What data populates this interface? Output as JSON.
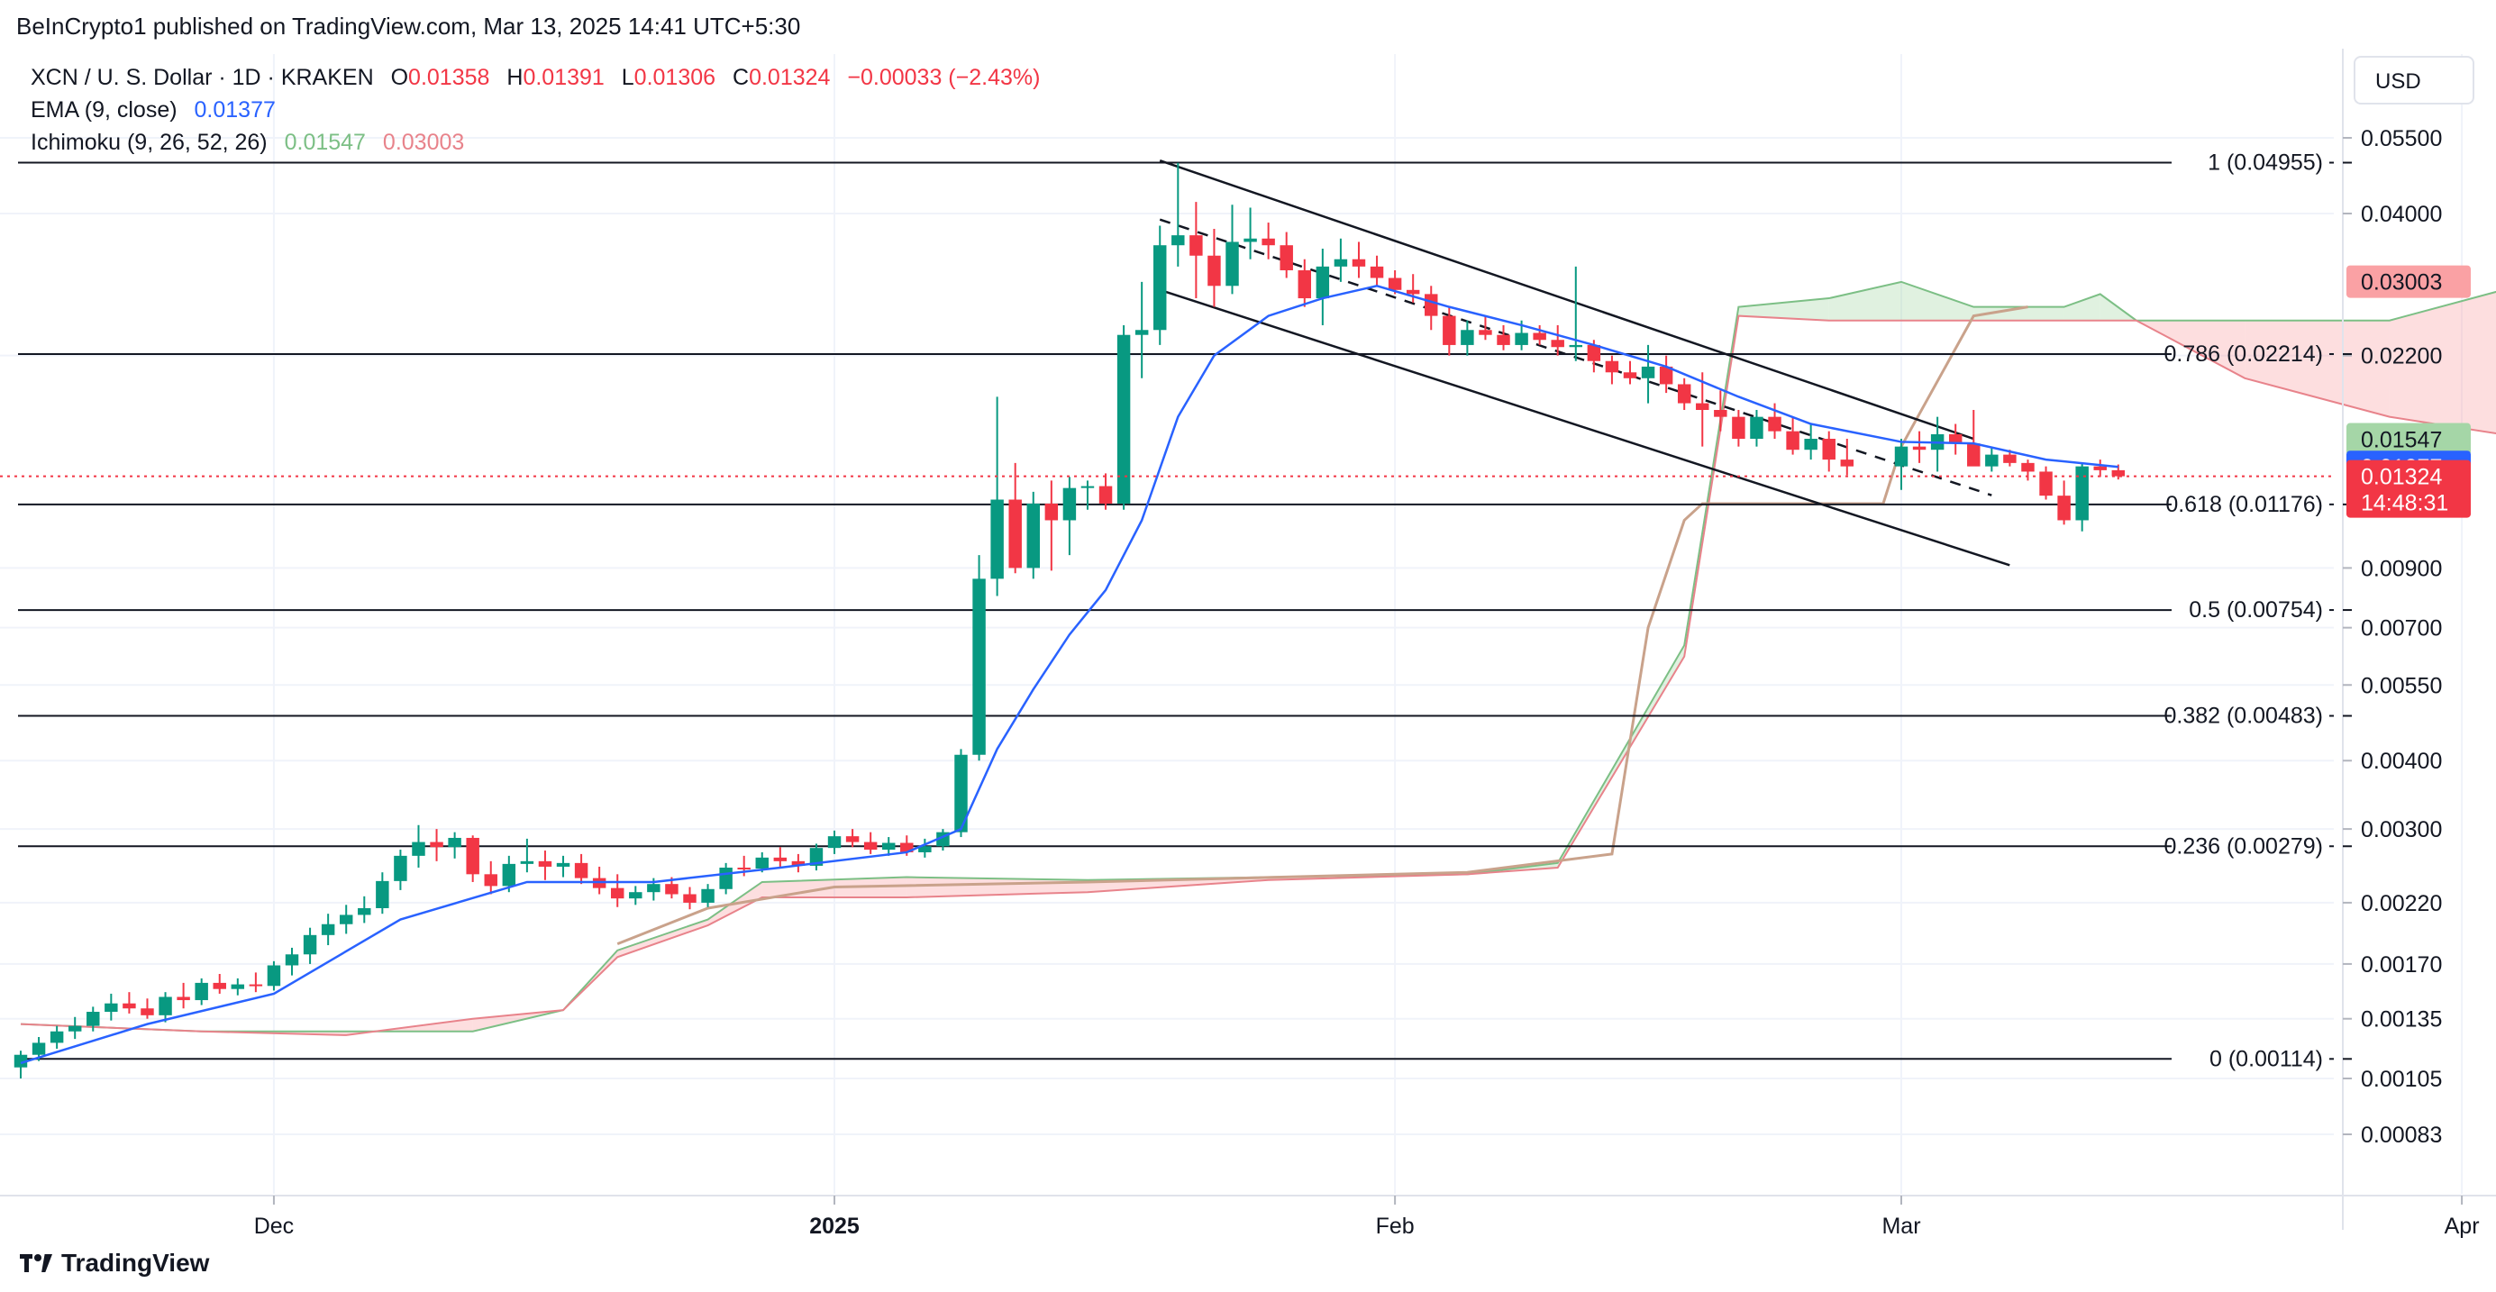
{
  "header": {
    "published_by": "BeInCrypto1 published on TradingView.com, Mar 13, 2025 14:41 UTC+5:30"
  },
  "legend": {
    "symbol": "XCN / U. S. Dollar · 1D · KRAKEN",
    "ohlc": [
      {
        "key": "O",
        "value": "0.01358"
      },
      {
        "key": "H",
        "value": "0.01391"
      },
      {
        "key": "L",
        "value": "0.01306"
      },
      {
        "key": "C",
        "value": "0.01324"
      }
    ],
    "change": "−0.00033 (−2.43%)",
    "ema_label": "EMA (9, close)",
    "ema_value": "0.01377",
    "ichimoku_label": "Ichimoku (9, 26, 52, 26)",
    "ichimoku_value1": "0.01547",
    "ichimoku_value2": "0.03003"
  },
  "currency_button": "USD",
  "footer": {
    "brand": "TradingView"
  },
  "colors": {
    "up": "#089981",
    "down": "#f23645",
    "ema": "#2962ff",
    "cloud_green": "#a5d6a7",
    "cloud_red": "#faa1a4",
    "lagging": "#c9a28b"
  },
  "chart_data": {
    "type": "candlestick",
    "symbol": "XCN / U. S. Dollar",
    "interval": "1D",
    "exchange": "KRAKEN",
    "y_scale": "log",
    "y_ticks": [
      "0.05500",
      "0.04000",
      "0.02200",
      "0.00900",
      "0.00700",
      "0.00550",
      "0.00400",
      "0.00300",
      "0.00220",
      "0.00170",
      "0.00135",
      "0.00105",
      "0.00083"
    ],
    "x_ticks": [
      {
        "date": "2024-12-01",
        "label": "Dec",
        "bold": false
      },
      {
        "date": "2025-01-01",
        "label": "2025",
        "bold": true
      },
      {
        "date": "2025-02-01",
        "label": "Feb",
        "bold": false
      },
      {
        "date": "2025-03-01",
        "label": "Mar",
        "bold": false
      },
      {
        "date": "2025-04-01",
        "label": "Apr",
        "bold": false
      }
    ],
    "x_range": [
      "2024-11-17",
      "2025-04-08"
    ],
    "fib_levels": [
      {
        "label": "1 (0.04955)",
        "value": 0.04955
      },
      {
        "label": "0.786 (0.02214)",
        "value": 0.02214
      },
      {
        "label": "0.618 (0.01176)",
        "value": 0.01176
      },
      {
        "label": "0.5 (0.00754)",
        "value": 0.00754
      },
      {
        "label": "0.382 (0.00483)",
        "value": 0.00483
      },
      {
        "label": "0.236 (0.00279)",
        "value": 0.00279
      },
      {
        "label": "0 (0.00114)",
        "value": 0.00114
      }
    ],
    "price_badges": [
      {
        "value": "0.03003",
        "price": 0.03003,
        "bg": "#faa1a4",
        "fg": "#131722"
      },
      {
        "value": "0.01547",
        "price": 0.01547,
        "bg": "#a5d6a7",
        "fg": "#131722"
      },
      {
        "value": "0.01377",
        "price": 0.01377,
        "bg": "#2962ff",
        "fg": "#ffffff"
      },
      {
        "value": "0.01324",
        "sub": "14:48:31",
        "price": 0.01324,
        "bg": "#f23645",
        "fg": "#ffffff"
      }
    ],
    "last_price": 0.01324,
    "channel": {
      "upper": [
        [
          "2025-01-19",
          0.05
        ],
        [
          "2025-03-05",
          0.0155
        ]
      ],
      "lower": [
        [
          "2025-01-19",
          0.029
        ],
        [
          "2025-03-05",
          0.0102
        ]
      ],
      "middle": [
        [
          "2025-01-19",
          0.039
        ],
        [
          "2025-03-05",
          0.0126
        ]
      ]
    },
    "candles": [
      [
        "2024-11-17",
        0.0011,
        0.00118,
        0.00105,
        0.00116
      ],
      [
        "2024-11-18",
        0.00116,
        0.00125,
        0.00113,
        0.00122
      ],
      [
        "2024-11-19",
        0.00122,
        0.00131,
        0.00119,
        0.00128
      ],
      [
        "2024-11-20",
        0.00128,
        0.00136,
        0.00124,
        0.00131
      ],
      [
        "2024-11-21",
        0.00131,
        0.00142,
        0.00128,
        0.00139
      ],
      [
        "2024-11-22",
        0.00139,
        0.0015,
        0.00134,
        0.00144
      ],
      [
        "2024-11-23",
        0.00144,
        0.00151,
        0.00138,
        0.00141
      ],
      [
        "2024-11-24",
        0.00141,
        0.00147,
        0.00135,
        0.00137
      ],
      [
        "2024-11-25",
        0.00137,
        0.00151,
        0.00133,
        0.00148
      ],
      [
        "2024-11-26",
        0.00148,
        0.00157,
        0.00141,
        0.00146
      ],
      [
        "2024-11-27",
        0.00146,
        0.0016,
        0.00143,
        0.00157
      ],
      [
        "2024-11-28",
        0.00157,
        0.00163,
        0.0015,
        0.00153
      ],
      [
        "2024-11-29",
        0.00153,
        0.0016,
        0.00149,
        0.00156
      ],
      [
        "2024-11-30",
        0.00156,
        0.00164,
        0.00151,
        0.00155
      ],
      [
        "2024-12-01",
        0.00155,
        0.00172,
        0.00152,
        0.00169
      ],
      [
        "2024-12-02",
        0.00169,
        0.00182,
        0.00162,
        0.00177
      ],
      [
        "2024-12-03",
        0.00177,
        0.00198,
        0.0017,
        0.00192
      ],
      [
        "2024-12-04",
        0.00192,
        0.0021,
        0.00184,
        0.00201
      ],
      [
        "2024-12-05",
        0.00201,
        0.00218,
        0.00193,
        0.00209
      ],
      [
        "2024-12-06",
        0.00209,
        0.00226,
        0.00202,
        0.00215
      ],
      [
        "2024-12-07",
        0.00215,
        0.0025,
        0.0021,
        0.00241
      ],
      [
        "2024-12-08",
        0.00241,
        0.00275,
        0.00232,
        0.00268
      ],
      [
        "2024-12-09",
        0.00268,
        0.00305,
        0.00255,
        0.00284
      ],
      [
        "2024-12-10",
        0.00284,
        0.003,
        0.00262,
        0.00278
      ],
      [
        "2024-12-11",
        0.00278,
        0.00296,
        0.00265,
        0.00289
      ],
      [
        "2024-12-12",
        0.00289,
        0.00292,
        0.0024,
        0.00248
      ],
      [
        "2024-12-13",
        0.00248,
        0.00262,
        0.00228,
        0.00236
      ],
      [
        "2024-12-14",
        0.00236,
        0.00268,
        0.0023,
        0.00259
      ],
      [
        "2024-12-15",
        0.00259,
        0.00288,
        0.0025,
        0.00262
      ],
      [
        "2024-12-16",
        0.00262,
        0.00274,
        0.00242,
        0.00256
      ],
      [
        "2024-12-17",
        0.00256,
        0.00268,
        0.00245,
        0.0026
      ],
      [
        "2024-12-18",
        0.0026,
        0.0027,
        0.00238,
        0.00244
      ],
      [
        "2024-12-19",
        0.00244,
        0.00256,
        0.00228,
        0.00234
      ],
      [
        "2024-12-20",
        0.00234,
        0.00248,
        0.00216,
        0.00224
      ],
      [
        "2024-12-21",
        0.00224,
        0.00236,
        0.00218,
        0.0023
      ],
      [
        "2024-12-22",
        0.0023,
        0.00244,
        0.00222,
        0.00238
      ],
      [
        "2024-12-23",
        0.00238,
        0.00245,
        0.00224,
        0.00228
      ],
      [
        "2024-12-24",
        0.00228,
        0.00235,
        0.00214,
        0.0022
      ],
      [
        "2024-12-25",
        0.0022,
        0.00238,
        0.00216,
        0.00233
      ],
      [
        "2024-12-26",
        0.00233,
        0.0026,
        0.00228,
        0.00255
      ],
      [
        "2024-12-27",
        0.00255,
        0.00268,
        0.00246,
        0.00254
      ],
      [
        "2024-12-28",
        0.00254,
        0.00272,
        0.0025,
        0.00266
      ],
      [
        "2024-12-29",
        0.00266,
        0.00278,
        0.00254,
        0.00262
      ],
      [
        "2024-12-30",
        0.00262,
        0.0027,
        0.0025,
        0.00257
      ],
      [
        "2024-12-31",
        0.00257,
        0.00282,
        0.00252,
        0.00277
      ],
      [
        "2025-01-01",
        0.00277,
        0.00298,
        0.0027,
        0.00291
      ],
      [
        "2025-01-02",
        0.00291,
        0.003,
        0.00278,
        0.00284
      ],
      [
        "2025-01-03",
        0.00284,
        0.00296,
        0.0027,
        0.00275
      ],
      [
        "2025-01-04",
        0.00275,
        0.0029,
        0.00268,
        0.00283
      ],
      [
        "2025-01-05",
        0.00283,
        0.00292,
        0.00268,
        0.00272
      ],
      [
        "2025-01-06",
        0.00272,
        0.00288,
        0.00266,
        0.00279
      ],
      [
        "2025-01-07",
        0.00279,
        0.003,
        0.00274,
        0.00296
      ],
      [
        "2025-01-08",
        0.00296,
        0.0042,
        0.0029,
        0.0041
      ],
      [
        "2025-01-09",
        0.0041,
        0.0095,
        0.004,
        0.0086
      ],
      [
        "2025-01-10",
        0.0086,
        0.0185,
        0.008,
        0.012
      ],
      [
        "2025-01-11",
        0.012,
        0.014,
        0.0088,
        0.009
      ],
      [
        "2025-01-12",
        0.009,
        0.0124,
        0.0086,
        0.0118
      ],
      [
        "2025-01-13",
        0.0118,
        0.013,
        0.0089,
        0.011
      ],
      [
        "2025-01-14",
        0.011,
        0.0132,
        0.0095,
        0.0126
      ],
      [
        "2025-01-15",
        0.0126,
        0.013,
        0.0115,
        0.0127
      ],
      [
        "2025-01-16",
        0.0127,
        0.0134,
        0.0115,
        0.0118
      ],
      [
        "2025-01-17",
        0.0118,
        0.025,
        0.0115,
        0.024
      ],
      [
        "2025-01-18",
        0.024,
        0.03,
        0.02,
        0.0245
      ],
      [
        "2025-01-19",
        0.0245,
        0.038,
        0.023,
        0.035
      ],
      [
        "2025-01-20",
        0.035,
        0.0495,
        0.032,
        0.0365
      ],
      [
        "2025-01-21",
        0.0365,
        0.042,
        0.028,
        0.0335
      ],
      [
        "2025-01-22",
        0.0335,
        0.0375,
        0.027,
        0.0295
      ],
      [
        "2025-01-23",
        0.0295,
        0.0415,
        0.0285,
        0.0355
      ],
      [
        "2025-01-24",
        0.0355,
        0.041,
        0.033,
        0.036
      ],
      [
        "2025-01-25",
        0.036,
        0.0385,
        0.033,
        0.035
      ],
      [
        "2025-01-26",
        0.035,
        0.037,
        0.0305,
        0.0315
      ],
      [
        "2025-01-27",
        0.0315,
        0.033,
        0.027,
        0.028
      ],
      [
        "2025-01-28",
        0.028,
        0.0345,
        0.025,
        0.032
      ],
      [
        "2025-01-29",
        0.032,
        0.036,
        0.03,
        0.033
      ],
      [
        "2025-01-30",
        0.033,
        0.0355,
        0.0305,
        0.032
      ],
      [
        "2025-01-31",
        0.032,
        0.0335,
        0.0295,
        0.0305
      ],
      [
        "2025-02-01",
        0.0305,
        0.0315,
        0.0285,
        0.029
      ],
      [
        "2025-02-02",
        0.029,
        0.031,
        0.0275,
        0.0285
      ],
      [
        "2025-02-03",
        0.0285,
        0.0295,
        0.0245,
        0.026
      ],
      [
        "2025-02-04",
        0.026,
        0.027,
        0.022,
        0.023
      ],
      [
        "2025-02-05",
        0.023,
        0.0255,
        0.022,
        0.0245
      ],
      [
        "2025-02-06",
        0.0245,
        0.026,
        0.0235,
        0.024
      ],
      [
        "2025-02-07",
        0.024,
        0.025,
        0.0225,
        0.023
      ],
      [
        "2025-02-08",
        0.023,
        0.0255,
        0.0225,
        0.0242
      ],
      [
        "2025-02-09",
        0.0242,
        0.025,
        0.023,
        0.0235
      ],
      [
        "2025-02-10",
        0.0235,
        0.025,
        0.022,
        0.0228
      ],
      [
        "2025-02-11",
        0.0228,
        0.032,
        0.0215,
        0.023
      ],
      [
        "2025-02-12",
        0.023,
        0.0235,
        0.0205,
        0.0215
      ],
      [
        "2025-02-13",
        0.0215,
        0.022,
        0.0195,
        0.0205
      ],
      [
        "2025-02-14",
        0.0205,
        0.0215,
        0.0195,
        0.02
      ],
      [
        "2025-02-15",
        0.02,
        0.023,
        0.018,
        0.021
      ],
      [
        "2025-02-16",
        0.021,
        0.022,
        0.0188,
        0.0195
      ],
      [
        "2025-02-17",
        0.0195,
        0.02,
        0.0175,
        0.018
      ],
      [
        "2025-02-18",
        0.018,
        0.0205,
        0.015,
        0.0175
      ],
      [
        "2025-02-19",
        0.0175,
        0.019,
        0.016,
        0.017
      ],
      [
        "2025-02-20",
        0.017,
        0.0175,
        0.015,
        0.0155
      ],
      [
        "2025-02-21",
        0.0155,
        0.0175,
        0.015,
        0.017
      ],
      [
        "2025-02-22",
        0.017,
        0.018,
        0.0155,
        0.016
      ],
      [
        "2025-02-23",
        0.016,
        0.017,
        0.0145,
        0.0148
      ],
      [
        "2025-02-24",
        0.0148,
        0.0165,
        0.0142,
        0.0155
      ],
      [
        "2025-02-25",
        0.0155,
        0.016,
        0.0135,
        0.0142
      ],
      [
        "2025-02-26",
        0.0142,
        0.0155,
        0.0133,
        0.0138
      ],
      [
        "2025-03-01",
        0.0138,
        0.0155,
        0.0125,
        0.015
      ],
      [
        "2025-03-02",
        0.015,
        0.016,
        0.014,
        0.0148
      ],
      [
        "2025-03-03",
        0.0148,
        0.017,
        0.0135,
        0.0158
      ],
      [
        "2025-03-04",
        0.0158,
        0.0165,
        0.0145,
        0.0152
      ],
      [
        "2025-03-05",
        0.0152,
        0.0175,
        0.014,
        0.0138
      ],
      [
        "2025-03-06",
        0.0138,
        0.015,
        0.0135,
        0.0145
      ],
      [
        "2025-03-07",
        0.0145,
        0.0148,
        0.0138,
        0.014
      ],
      [
        "2025-03-08",
        0.014,
        0.0142,
        0.013,
        0.0135
      ],
      [
        "2025-03-09",
        0.0135,
        0.0138,
        0.012,
        0.0122
      ],
      [
        "2025-03-10",
        0.0122,
        0.013,
        0.0108,
        0.011
      ],
      [
        "2025-03-11",
        0.011,
        0.014,
        0.0105,
        0.0138
      ],
      [
        "2025-03-12",
        0.0138,
        0.0142,
        0.0132,
        0.01358
      ],
      [
        "2025-03-13",
        0.01358,
        0.01391,
        0.01306,
        0.01324
      ]
    ],
    "ema": [
      [
        "2024-11-17",
        0.00112
      ],
      [
        "2024-11-24",
        0.00132
      ],
      [
        "2024-12-01",
        0.0015
      ],
      [
        "2024-12-08",
        0.00205
      ],
      [
        "2024-12-15",
        0.0024
      ],
      [
        "2024-12-22",
        0.0024
      ],
      [
        "2024-12-29",
        0.00255
      ],
      [
        "2025-01-05",
        0.00272
      ],
      [
        "2025-01-08",
        0.003
      ],
      [
        "2025-01-10",
        0.0042
      ],
      [
        "2025-01-12",
        0.0054
      ],
      [
        "2025-01-14",
        0.0068
      ],
      [
        "2025-01-16",
        0.0082
      ],
      [
        "2025-01-18",
        0.011
      ],
      [
        "2025-01-20",
        0.017
      ],
      [
        "2025-01-22",
        0.022
      ],
      [
        "2025-01-25",
        0.026
      ],
      [
        "2025-01-28",
        0.028
      ],
      [
        "2025-01-31",
        0.0295
      ],
      [
        "2025-02-04",
        0.027
      ],
      [
        "2025-02-08",
        0.025
      ],
      [
        "2025-02-12",
        0.023
      ],
      [
        "2025-02-16",
        0.021
      ],
      [
        "2025-02-20",
        0.0185
      ],
      [
        "2025-02-24",
        0.0165
      ],
      [
        "2025-03-01",
        0.0153
      ],
      [
        "2025-03-05",
        0.0152
      ],
      [
        "2025-03-09",
        0.0142
      ],
      [
        "2025-03-13",
        0.01377
      ]
    ],
    "cloud": [
      [
        "2024-11-17",
        0.00132,
        0.00132
      ],
      [
        "2024-11-27",
        0.00128,
        0.00128
      ],
      [
        "2024-12-05",
        0.00128,
        0.00126
      ],
      [
        "2024-12-12",
        0.00128,
        0.00135
      ],
      [
        "2024-12-17",
        0.0014,
        0.0014
      ],
      [
        "2024-12-20",
        0.0018,
        0.00175
      ],
      [
        "2024-12-25",
        0.00205,
        0.002
      ],
      [
        "2024-12-28",
        0.0024,
        0.00225
      ],
      [
        "2025-01-05",
        0.00245,
        0.00225
      ],
      [
        "2025-01-15",
        0.00242,
        0.0023
      ],
      [
        "2025-01-25",
        0.00245,
        0.00242
      ],
      [
        "2025-02-05",
        0.00248,
        0.00248
      ],
      [
        "2025-02-10",
        0.0026,
        0.00255
      ],
      [
        "2025-02-17",
        0.0065,
        0.0062
      ],
      [
        "2025-02-20",
        0.027,
        0.026
      ],
      [
        "2025-02-25",
        0.028,
        0.0255
      ],
      [
        "2025-03-01",
        0.03,
        0.0255
      ],
      [
        "2025-03-05",
        0.027,
        0.0255
      ],
      [
        "2025-03-10",
        0.027,
        0.0255
      ],
      [
        "2025-03-12",
        0.0285,
        0.0255
      ],
      [
        "2025-03-14",
        0.0255,
        0.0255
      ],
      [
        "2025-03-20",
        0.0255,
        0.02
      ],
      [
        "2025-03-28",
        0.0255,
        0.017
      ],
      [
        "2025-04-05",
        0.03003,
        0.01547
      ]
    ],
    "lagging": [
      [
        "2024-12-20",
        0.00185
      ],
      [
        "2024-12-25",
        0.00215
      ],
      [
        "2025-01-01",
        0.00235
      ],
      [
        "2025-01-15",
        0.0024
      ],
      [
        "2025-02-05",
        0.0025
      ],
      [
        "2025-02-13",
        0.0027
      ],
      [
        "2025-02-15",
        0.007
      ],
      [
        "2025-02-17",
        0.011
      ],
      [
        "2025-02-18",
        0.0118
      ],
      [
        "2025-02-28",
        0.0118
      ],
      [
        "2025-03-01",
        0.015
      ],
      [
        "2025-03-05",
        0.026
      ],
      [
        "2025-03-08",
        0.027
      ]
    ]
  }
}
